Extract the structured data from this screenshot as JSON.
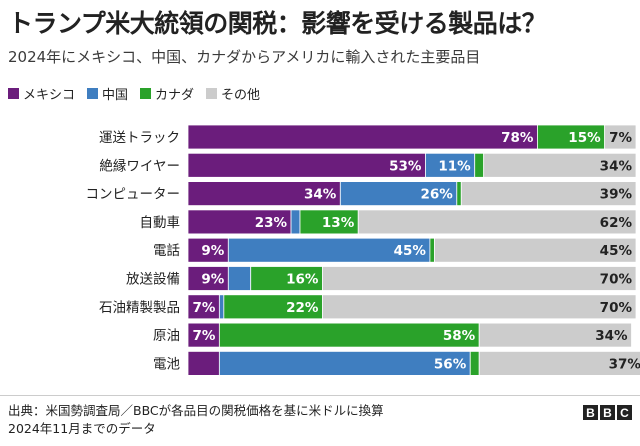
{
  "chart_data": {
    "type": "stacked-bar-horizontal",
    "title": "トランプ米大統領の関税：影響を受ける製品は？",
    "subtitle": "2024年にメキシコ、中国、カナダからアメリカに輸入された主要品目",
    "categories": [
      "運送トラック",
      "絶縁ワイヤー",
      "コンピューター",
      "自動車",
      "電話",
      "放送設備",
      "石油精製製品",
      "原油",
      "電池"
    ],
    "series": [
      {
        "name": "メキシコ",
        "color": "#6b1d7c",
        "values": [
          78,
          53,
          34,
          23,
          9,
          9,
          7,
          7,
          7
        ]
      },
      {
        "name": "中国",
        "color": "#3f7ec0",
        "values": [
          0,
          11,
          26,
          2,
          45,
          5,
          1,
          0,
          56
        ]
      },
      {
        "name": "カナダ",
        "color": "#2aa22a",
        "values": [
          15,
          2,
          1,
          13,
          1,
          16,
          22,
          58,
          2
        ]
      },
      {
        "name": "その他",
        "color": "#cccccc",
        "values": [
          7,
          34,
          39,
          62,
          45,
          70,
          70,
          34,
          37
        ]
      }
    ],
    "data_labels": [
      [
        "78%",
        "",
        "15%",
        "7%"
      ],
      [
        "53%",
        "11%",
        "",
        "34%"
      ],
      [
        "34%",
        "26%",
        "",
        "39%"
      ],
      [
        "23%",
        "",
        "13%",
        "62%"
      ],
      [
        "9%",
        "45%",
        "",
        "45%"
      ],
      [
        "9%",
        "",
        "16%",
        "70%"
      ],
      [
        "7%",
        "",
        "22%",
        "70%"
      ],
      [
        "7%",
        "",
        "58%",
        "34%"
      ],
      [
        "",
        "56%",
        "",
        "37%"
      ]
    ],
    "xlim": [
      0,
      100
    ]
  },
  "footer": {
    "source": "出典：米国勢調査局／BBCが各品目の関税価格を基に米ドルに換算",
    "note": "2024年11月までのデータ"
  },
  "brand": {
    "letters": [
      "B",
      "B",
      "C"
    ]
  }
}
